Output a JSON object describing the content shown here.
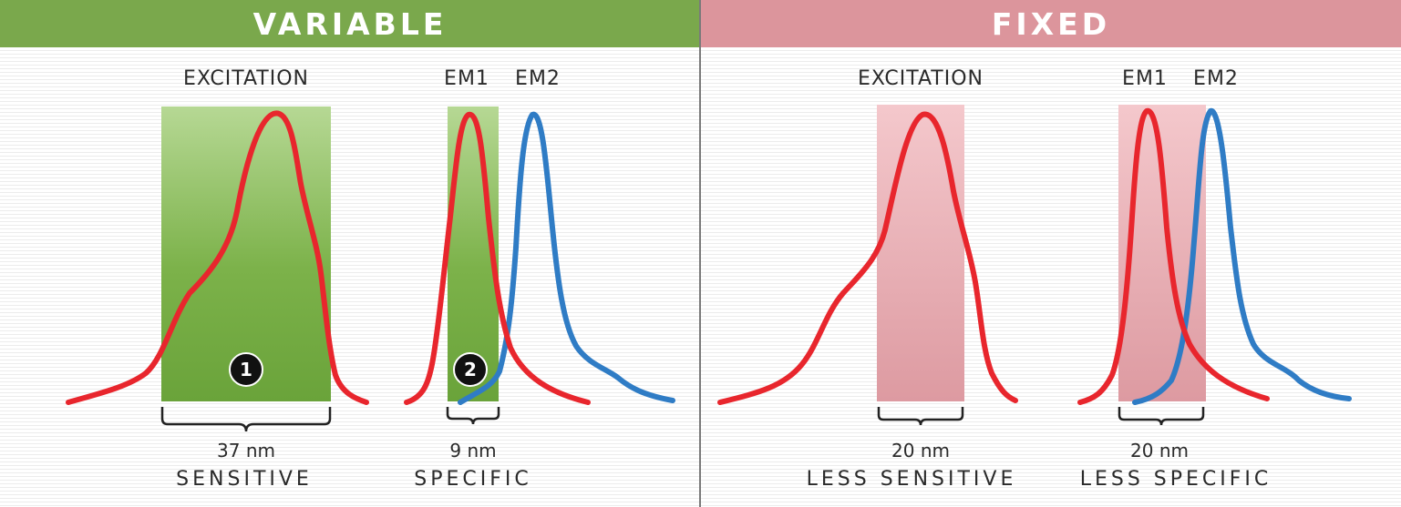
{
  "colors": {
    "variable_header": "#7aa84c",
    "fixed_header": "#dc959c",
    "green_band": "#7cb24a",
    "pink_band": "#e5a7ae",
    "red_curve": "#e8262d",
    "blue_curve": "#2f7cc5",
    "divider": "#7a7a7a"
  },
  "variable": {
    "title": "VARIABLE",
    "excitation_label": "EXCITATION",
    "em1_label": "EM1",
    "em2_label": "EM2",
    "excitation_bandwidth": "37 nm",
    "emission_bandwidth": "9 nm",
    "excitation_note": "SENSITIVE",
    "emission_note": "SPECIFIC",
    "badge_1": "1",
    "badge_2": "2"
  },
  "fixed": {
    "title": "FIXED",
    "excitation_label": "EXCITATION",
    "em1_label": "EM1",
    "em2_label": "EM2",
    "excitation_bandwidth": "20 nm",
    "emission_bandwidth": "20 nm",
    "excitation_note": "LESS SENSITIVE",
    "emission_note": "LESS SPECIFIC"
  }
}
